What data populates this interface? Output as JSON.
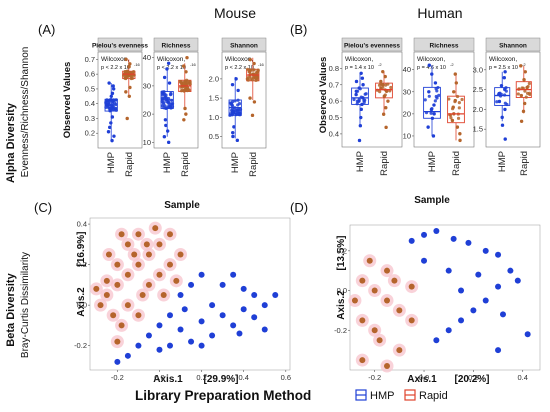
{
  "figure": {
    "mouse_title": "Mouse",
    "human_title": "Human",
    "alpha_label": "Alpha Diversity",
    "alpha_sublabel": "Evenness/Richness/Shannon",
    "beta_label": "Beta Diversity",
    "beta_sublabel": "Bray-Curtis Dissimilarity",
    "legend_title": "Library Preparation Method",
    "legend_hmp": "HMP",
    "legend_rapid": "Rapid",
    "colors": {
      "hmp": "#1f3fd6",
      "rapid": "#b5652c",
      "rapid_box": "#e0432c",
      "halo": "#f7c7d0",
      "strip": "#d9d9d9"
    }
  },
  "chart_data": [
    {
      "panel": "(A)",
      "type": "box",
      "ylabel": "Observed Values",
      "xlabel": "Sample",
      "facets": [
        {
          "title": "Pielou's evenness",
          "stat_name": "Wilcoxon,",
          "stat_p": "p < 2.2 x 10",
          "stat_exp": "-16",
          "ylim": [
            0.1,
            0.75
          ],
          "ticks": [
            "0.2",
            "0.3",
            "0.4",
            "0.5",
            "0.6",
            "0.7"
          ],
          "tick_values": [
            0.2,
            0.3,
            0.4,
            0.5,
            0.6,
            0.7
          ],
          "categories": [
            "HMP",
            "Rapid"
          ],
          "boxes": [
            {
              "name": "HMP",
              "q1": 0.35,
              "median": 0.39,
              "q3": 0.43,
              "whisker_low": 0.15,
              "whisker_high": 0.54,
              "points": [
                0.15,
                0.18,
                0.21,
                0.24,
                0.27,
                0.31,
                0.45,
                0.47,
                0.5,
                0.52,
                0.54
              ]
            },
            {
              "name": "Rapid",
              "q1": 0.57,
              "median": 0.6,
              "q3": 0.62,
              "whisker_low": 0.45,
              "whisker_high": 0.7,
              "points": [
                0.3,
                0.45,
                0.48,
                0.51,
                0.65,
                0.67,
                0.7
              ]
            }
          ]
        },
        {
          "title": "Richness",
          "stat_name": "Wilcoxon,",
          "stat_p": "p < 2.2 x 10",
          "stat_exp": "-16",
          "ylim": [
            8,
            42
          ],
          "ticks": [
            "10",
            "20",
            "30",
            "40"
          ],
          "tick_values": [
            10,
            20,
            30,
            40
          ],
          "categories": [
            "HMP",
            "Rapid"
          ],
          "boxes": [
            {
              "name": "HMP",
              "q1": 22,
              "median": 25,
              "q3": 28,
              "whisker_low": 12,
              "whisker_high": 36,
              "points": [
                10,
                12,
                14,
                16,
                18,
                31,
                33,
                36,
                38
              ]
            },
            {
              "name": "Rapid",
              "q1": 28,
              "median": 30,
              "q3": 32,
              "whisker_low": 22,
              "whisker_high": 38,
              "points": [
                18,
                20,
                22,
                35,
                37,
                40
              ]
            }
          ]
        },
        {
          "title": "Shannon",
          "stat_name": "Wilcoxon,",
          "stat_p": "p < 2.2 x 10",
          "stat_exp": "-16",
          "ylim": [
            0.2,
            2.7
          ],
          "ticks": [
            "0.5",
            "1.0",
            "1.5",
            "2.0"
          ],
          "tick_values": [
            0.5,
            1.0,
            1.5,
            2.0
          ],
          "categories": [
            "HMP",
            "Rapid"
          ],
          "boxes": [
            {
              "name": "HMP",
              "q1": 1.05,
              "median": 1.25,
              "q3": 1.45,
              "whisker_low": 0.45,
              "whisker_high": 2.05,
              "points": [
                0.4,
                0.5,
                0.6,
                0.75,
                1.7,
                1.85,
                2.0
              ]
            },
            {
              "name": "Rapid",
              "q1": 1.95,
              "median": 2.1,
              "q3": 2.25,
              "whisker_low": 1.45,
              "whisker_high": 2.55,
              "points": [
                1.05,
                1.4,
                1.5,
                2.4,
                2.5
              ]
            }
          ]
        }
      ]
    },
    {
      "panel": "(B)",
      "type": "box",
      "ylabel": "Observed Values",
      "xlabel": "Sample",
      "facets": [
        {
          "title": "Pielou's evenness",
          "stat_name": "Wilcoxon,",
          "stat_p": "p = 1.4 x 10",
          "stat_exp": "-2",
          "ylim": [
            0.32,
            0.9
          ],
          "ticks": [
            "0.4",
            "0.5",
            "0.6",
            "0.7",
            "0.8"
          ],
          "tick_values": [
            0.4,
            0.5,
            0.6,
            0.7,
            0.8
          ],
          "categories": [
            "HMP",
            "Rapid"
          ],
          "boxes": [
            {
              "name": "HMP",
              "q1": 0.58,
              "median": 0.62,
              "q3": 0.68,
              "whisker_low": 0.45,
              "whisker_high": 0.77,
              "points": [
                0.36,
                0.45,
                0.5,
                0.55,
                0.58,
                0.6,
                0.62,
                0.64,
                0.66,
                0.68,
                0.7,
                0.72,
                0.74,
                0.77
              ]
            },
            {
              "name": "Rapid",
              "q1": 0.62,
              "median": 0.67,
              "q3": 0.71,
              "whisker_low": 0.52,
              "whisker_high": 0.78,
              "points": [
                0.44,
                0.52,
                0.56,
                0.6,
                0.63,
                0.66,
                0.68,
                0.7,
                0.72,
                0.75,
                0.78
              ]
            }
          ]
        },
        {
          "title": "Richness",
          "stat_name": "Wilcoxon,",
          "stat_p": "p = 4.6 x 10",
          "stat_exp": "-2",
          "ylim": [
            5,
            48
          ],
          "ticks": [
            "10",
            "20",
            "30",
            "40"
          ],
          "tick_values": [
            10,
            20,
            30,
            40
          ],
          "categories": [
            "HMP",
            "Rapid"
          ],
          "boxes": [
            {
              "name": "HMP",
              "q1": 18,
              "median": 21,
              "q3": 32,
              "whisker_low": 10,
              "whisker_high": 42,
              "points": [
                10,
                14,
                18,
                20,
                22,
                24,
                30,
                34,
                38,
                42
              ]
            },
            {
              "name": "Rapid",
              "q1": 16,
              "median": 20,
              "q3": 28,
              "whisker_low": 8,
              "whisker_high": 38,
              "points": [
                8,
                11,
                14,
                17,
                20,
                23,
                26,
                30,
                34,
                38
              ]
            }
          ]
        },
        {
          "title": "Shannon",
          "stat_name": "Wilcoxon,",
          "stat_p": "p = 2.5 x 10",
          "stat_exp": "-2",
          "ylim": [
            1.05,
            3.45
          ],
          "ticks": [
            "1.5",
            "2.0",
            "2.5",
            "3.0"
          ],
          "tick_values": [
            1.5,
            2.0,
            2.5,
            3.0
          ],
          "categories": [
            "HMP",
            "Rapid"
          ],
          "boxes": [
            {
              "name": "HMP",
              "q1": 2.1,
              "median": 2.35,
              "q3": 2.55,
              "whisker_low": 1.7,
              "whisker_high": 2.95,
              "points": [
                1.25,
                1.6,
                1.8,
                2.0,
                2.2,
                2.4,
                2.6,
                2.8,
                2.95
              ]
            },
            {
              "name": "Rapid",
              "q1": 2.3,
              "median": 2.5,
              "q3": 2.7,
              "whisker_low": 1.9,
              "whisker_high": 3.1,
              "points": [
                1.7,
                1.95,
                2.15,
                2.35,
                2.55,
                2.75,
                2.95,
                3.1
              ]
            }
          ]
        }
      ]
    },
    {
      "panel": "(C)",
      "type": "scatter",
      "xlabel_name": "Axis.1",
      "xlabel_pct": "[29.9%]",
      "ylabel_name": "Axis.2",
      "ylabel_pct": "[16.9%]",
      "xlim": [
        -0.33,
        0.62
      ],
      "ylim": [
        -0.32,
        0.43
      ],
      "xticks": [
        "-0.2",
        "0.0",
        "0.2",
        "0.4",
        "0.6"
      ],
      "xtick_values": [
        -0.2,
        0.0,
        0.2,
        0.4,
        0.6
      ],
      "yticks": [
        "-0.2",
        "0.0",
        "0.2",
        "0.4"
      ],
      "ytick_values": [
        -0.2,
        0.0,
        0.2,
        0.4
      ],
      "series": [
        {
          "name": "HMP",
          "points": [
            [
              -0.15,
              -0.25
            ],
            [
              -0.1,
              -0.2
            ],
            [
              -0.05,
              -0.15
            ],
            [
              0.0,
              -0.1
            ],
            [
              0.05,
              -0.05
            ],
            [
              0.1,
              -0.12
            ],
            [
              0.15,
              -0.18
            ],
            [
              0.2,
              -0.08
            ],
            [
              0.25,
              0.0
            ],
            [
              0.3,
              -0.05
            ],
            [
              0.35,
              -0.1
            ],
            [
              0.4,
              -0.02
            ],
            [
              0.45,
              -0.06
            ],
            [
              0.5,
              -0.12
            ],
            [
              0.55,
              0.05
            ],
            [
              0.3,
              0.1
            ],
            [
              0.35,
              0.15
            ],
            [
              0.4,
              0.08
            ],
            [
              0.2,
              0.15
            ],
            [
              0.1,
              0.05
            ],
            [
              0.15,
              0.1
            ],
            [
              -0.2,
              -0.28
            ],
            [
              0.0,
              -0.22
            ],
            [
              0.05,
              -0.2
            ],
            [
              0.25,
              -0.15
            ],
            [
              0.45,
              0.05
            ],
            [
              0.5,
              0.0
            ],
            [
              0.2,
              -0.2
            ],
            [
              0.38,
              -0.14
            ],
            [
              0.12,
              -0.02
            ]
          ]
        },
        {
          "name": "Rapid",
          "points": [
            [
              -0.25,
              0.05
            ],
            [
              -0.2,
              0.1
            ],
            [
              -0.15,
              0.15
            ],
            [
              -0.1,
              0.2
            ],
            [
              -0.05,
              0.25
            ],
            [
              0.0,
              0.3
            ],
            [
              -0.2,
              0.2
            ],
            [
              -0.15,
              0.3
            ],
            [
              -0.1,
              0.35
            ],
            [
              -0.05,
              0.1
            ],
            [
              0.0,
              0.15
            ],
            [
              0.05,
              0.2
            ],
            [
              -0.22,
              -0.05
            ],
            [
              -0.18,
              -0.1
            ],
            [
              -0.15,
              0.0
            ],
            [
              -0.08,
              0.05
            ],
            [
              -0.25,
              0.12
            ],
            [
              -0.12,
              0.25
            ],
            [
              -0.02,
              0.38
            ],
            [
              0.05,
              0.35
            ],
            [
              0.1,
              0.25
            ],
            [
              -0.28,
              0.0
            ],
            [
              -0.24,
              0.25
            ],
            [
              -0.18,
              0.35
            ],
            [
              -0.06,
              0.3
            ],
            [
              0.02,
              0.05
            ],
            [
              -0.1,
              -0.05
            ],
            [
              -0.2,
              -0.18
            ],
            [
              0.08,
              0.12
            ],
            [
              -0.3,
              0.08
            ]
          ]
        }
      ]
    },
    {
      "panel": "(D)",
      "type": "scatter",
      "xlabel_name": "Axis.1",
      "xlabel_pct": "[20.2%]",
      "ylabel_name": "Axis.2",
      "ylabel_pct": "[13.5%]",
      "xlim": [
        -0.3,
        0.47
      ],
      "ylim": [
        -0.4,
        0.33
      ],
      "xticks": [
        "-0.2",
        "0.0",
        "0.2",
        "0.4"
      ],
      "xtick_values": [
        -0.2,
        0.0,
        0.2,
        0.4
      ],
      "yticks": [
        "-0.2",
        "0.0",
        "0.2"
      ],
      "ytick_values": [
        -0.2,
        0.0,
        0.2
      ],
      "series": [
        {
          "name": "HMP",
          "points": [
            [
              0.05,
              0.3
            ],
            [
              0.12,
              0.26
            ],
            [
              0.18,
              0.24
            ],
            [
              0.25,
              0.2
            ],
            [
              0.3,
              0.18
            ],
            [
              0.35,
              0.1
            ],
            [
              0.38,
              0.05
            ],
            [
              0.3,
              0.02
            ],
            [
              0.25,
              -0.05
            ],
            [
              0.2,
              -0.1
            ],
            [
              0.15,
              -0.15
            ],
            [
              0.1,
              -0.2
            ],
            [
              0.05,
              -0.25
            ],
            [
              0.3,
              -0.3
            ],
            [
              0.42,
              -0.22
            ],
            [
              0.1,
              0.1
            ],
            [
              0.0,
              0.15
            ],
            [
              0.22,
              0.08
            ],
            [
              -0.05,
              0.25
            ],
            [
              0.0,
              0.28
            ],
            [
              0.32,
              -0.12
            ],
            [
              0.15,
              0.0
            ]
          ]
        },
        {
          "name": "Rapid",
          "points": [
            [
              -0.25,
              0.05
            ],
            [
              -0.2,
              0.0
            ],
            [
              -0.15,
              -0.05
            ],
            [
              -0.1,
              -0.1
            ],
            [
              -0.25,
              -0.15
            ],
            [
              -0.2,
              -0.2
            ],
            [
              -0.15,
              0.1
            ],
            [
              -0.22,
              0.15
            ],
            [
              -0.18,
              -0.25
            ],
            [
              -0.1,
              -0.3
            ],
            [
              -0.25,
              -0.35
            ],
            [
              -0.05,
              -0.15
            ],
            [
              -0.12,
              0.05
            ],
            [
              -0.28,
              -0.05
            ],
            [
              -0.05,
              0.02
            ],
            [
              -0.15,
              -0.38
            ]
          ]
        }
      ]
    }
  ]
}
